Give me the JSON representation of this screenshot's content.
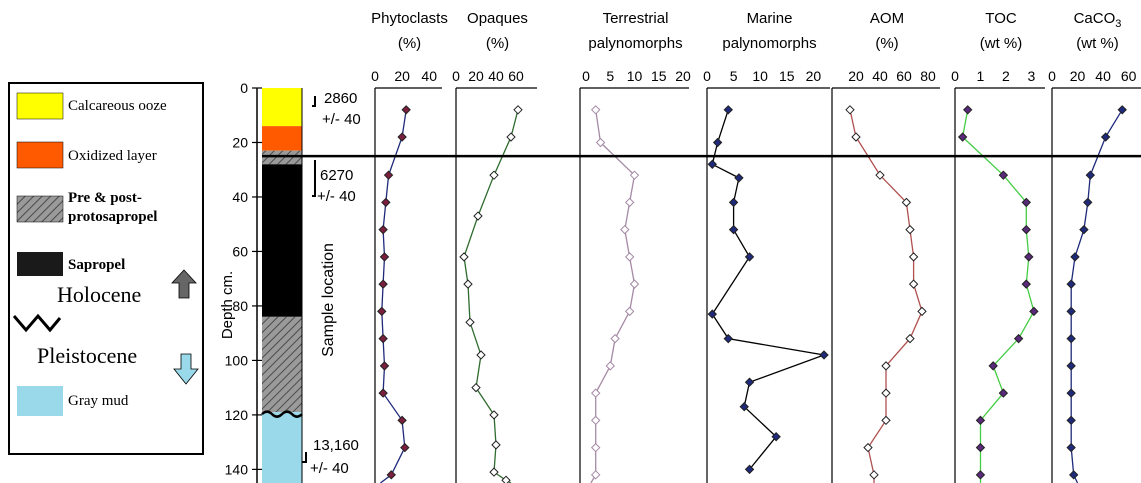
{
  "legend": {
    "items": [
      {
        "label": "Calcareous ooze",
        "color": "#ffff00",
        "pattern": "solid"
      },
      {
        "label": "Oxidized layer",
        "color": "#ff5a00",
        "pattern": "solid"
      },
      {
        "label_line1": "Pre & post-",
        "label_line2": "protosapropel",
        "color": "#9a9a9a",
        "pattern": "hatch"
      },
      {
        "label": "Sapropel",
        "color": "#1a1a1a",
        "pattern": "solid"
      },
      {
        "label": "Gray mud",
        "color": "#99d9ea",
        "pattern": "solid"
      }
    ],
    "holocene": "Holocene",
    "pleistocene": "Pleistocene",
    "up_arrow_color": "#666666",
    "down_arrow_color": "#99d9ea"
  },
  "core": {
    "ylabel": "Depth cm.",
    "sample_location": "Sample location",
    "depth_ticks": [
      0,
      20,
      40,
      60,
      80,
      100,
      120,
      140
    ],
    "ylim": [
      0,
      145
    ],
    "layers": [
      {
        "from": 0,
        "to": 14,
        "color": "#ffff00",
        "pattern": "solid"
      },
      {
        "from": 14,
        "to": 23,
        "color": "#ff5a00",
        "pattern": "solid"
      },
      {
        "from": 23,
        "to": 28,
        "color": "#9a9a9a",
        "pattern": "hatch"
      },
      {
        "from": 28,
        "to": 84,
        "color": "#000000",
        "pattern": "solid"
      },
      {
        "from": 84,
        "to": 119,
        "color": "#9a9a9a",
        "pattern": "hatch"
      },
      {
        "from": 119,
        "to": 145,
        "color": "#99d9ea",
        "pattern": "solid"
      }
    ],
    "ages": [
      {
        "line1": "2860",
        "line2": "+/- 40"
      },
      {
        "line1": "6270",
        "line2": "+/- 40"
      },
      {
        "line1": "13,160",
        "line2": "+/- 40"
      }
    ]
  },
  "boundary_depth": 25,
  "chart_data": [
    {
      "type": "line",
      "title_line1": "Phytoclasts",
      "title_line2": "(%)",
      "xlim": [
        0,
        45
      ],
      "ticks": [
        "0",
        "20",
        "40"
      ],
      "tick_values": [
        0,
        20,
        40
      ],
      "color": "#1f2a7a",
      "marker": "#7a1f3d",
      "x": [
        23,
        20,
        10,
        8,
        6,
        7,
        6,
        5,
        6,
        7,
        6,
        20,
        22,
        12,
        4
      ],
      "y": [
        8,
        18,
        32,
        42,
        52,
        62,
        72,
        82,
        92,
        102,
        112,
        122,
        132,
        142,
        145
      ]
    },
    {
      "type": "line",
      "title_line1": "Opaques",
      "title_line2": "(%)",
      "xlim": [
        0,
        75
      ],
      "ticks": [
        "0",
        "20",
        "40",
        "60"
      ],
      "tick_values": [
        0,
        20,
        40,
        60
      ],
      "color": "#2e6b2e",
      "marker": "#2e6b2e",
      "x": [
        62,
        55,
        38,
        22,
        8,
        12,
        14,
        25,
        20,
        38,
        40,
        38,
        50,
        55
      ],
      "y": [
        8,
        18,
        32,
        47,
        62,
        72,
        86,
        98,
        110,
        120,
        131,
        141,
        144,
        145
      ]
    },
    {
      "type": "line",
      "title_line1": "Terrestrial",
      "title_line2": "palynomorphs",
      "xlim": [
        0,
        20
      ],
      "ticks": [
        "0",
        "5",
        "10",
        "15",
        "20"
      ],
      "tick_values": [
        0,
        5,
        10,
        15,
        20
      ],
      "color": "#a58aa5",
      "marker": "#a58aa5",
      "x": [
        2,
        3,
        10,
        9,
        8,
        9,
        10,
        9,
        6,
        5,
        2,
        2,
        2,
        2,
        1
      ],
      "y": [
        8,
        20,
        32,
        42,
        52,
        62,
        72,
        82,
        92,
        102,
        112,
        122,
        132,
        142,
        145
      ]
    },
    {
      "type": "line",
      "title_line1": "Marine",
      "title_line2": "palynomorphs",
      "xlim": [
        0,
        22
      ],
      "ticks": [
        "0",
        "5",
        "10",
        "15",
        "20"
      ],
      "tick_values": [
        0,
        5,
        10,
        15,
        20
      ],
      "color": "#000000",
      "marker": "#1f2a7a",
      "x": [
        4,
        2,
        1,
        6,
        5,
        5,
        8,
        1,
        4,
        22,
        8,
        7,
        13,
        8
      ],
      "y": [
        8,
        20,
        28,
        33,
        42,
        52,
        62,
        83,
        92,
        98,
        108,
        117,
        128,
        140
      ]
    },
    {
      "type": "line",
      "title_line1": "AOM",
      "title_line2": "(%)",
      "xlim": [
        0,
        85
      ],
      "ticks": [
        "20",
        "40",
        "60",
        "80"
      ],
      "tick_values": [
        20,
        40,
        60,
        80
      ],
      "color": "#b05050",
      "marker": "#7a1f3d",
      "x": [
        15,
        20,
        40,
        62,
        65,
        68,
        68,
        75,
        65,
        45,
        45,
        45,
        30,
        35,
        35
      ],
      "y": [
        8,
        18,
        32,
        42,
        52,
        62,
        72,
        82,
        92,
        102,
        112,
        122,
        132,
        142,
        145
      ]
    },
    {
      "type": "line",
      "title_line1": "TOC",
      "title_line2": "(wt %)",
      "xlim": [
        0,
        3.3
      ],
      "ticks": [
        "0",
        "1",
        "2",
        "3"
      ],
      "tick_values": [
        0,
        1,
        2,
        3
      ],
      "color": "#44cc44",
      "marker": "#5a2a7a",
      "x": [
        0.5,
        0.3,
        1.9,
        2.8,
        2.8,
        2.9,
        2.8,
        3.1,
        2.5,
        1.5,
        1.9,
        1.0,
        1.0,
        1.0,
        1.0
      ],
      "y": [
        8,
        18,
        32,
        42,
        52,
        62,
        72,
        82,
        92,
        102,
        112,
        122,
        132,
        142,
        145
      ]
    },
    {
      "type": "line",
      "title_line1": "CaCO",
      "title_line2": "(wt %)",
      "title_sub": "3",
      "xlim": [
        0,
        65
      ],
      "ticks": [
        "0",
        "20",
        "40",
        "60"
      ],
      "tick_values": [
        0,
        20,
        40,
        60
      ],
      "color": "#1f2a7a",
      "marker": "#1f2a7a",
      "x": [
        55,
        42,
        30,
        28,
        25,
        18,
        15,
        15,
        15,
        15,
        15,
        15,
        15,
        17,
        20
      ],
      "y": [
        8,
        18,
        32,
        42,
        52,
        62,
        72,
        82,
        92,
        102,
        112,
        122,
        132,
        142,
        145
      ]
    }
  ]
}
